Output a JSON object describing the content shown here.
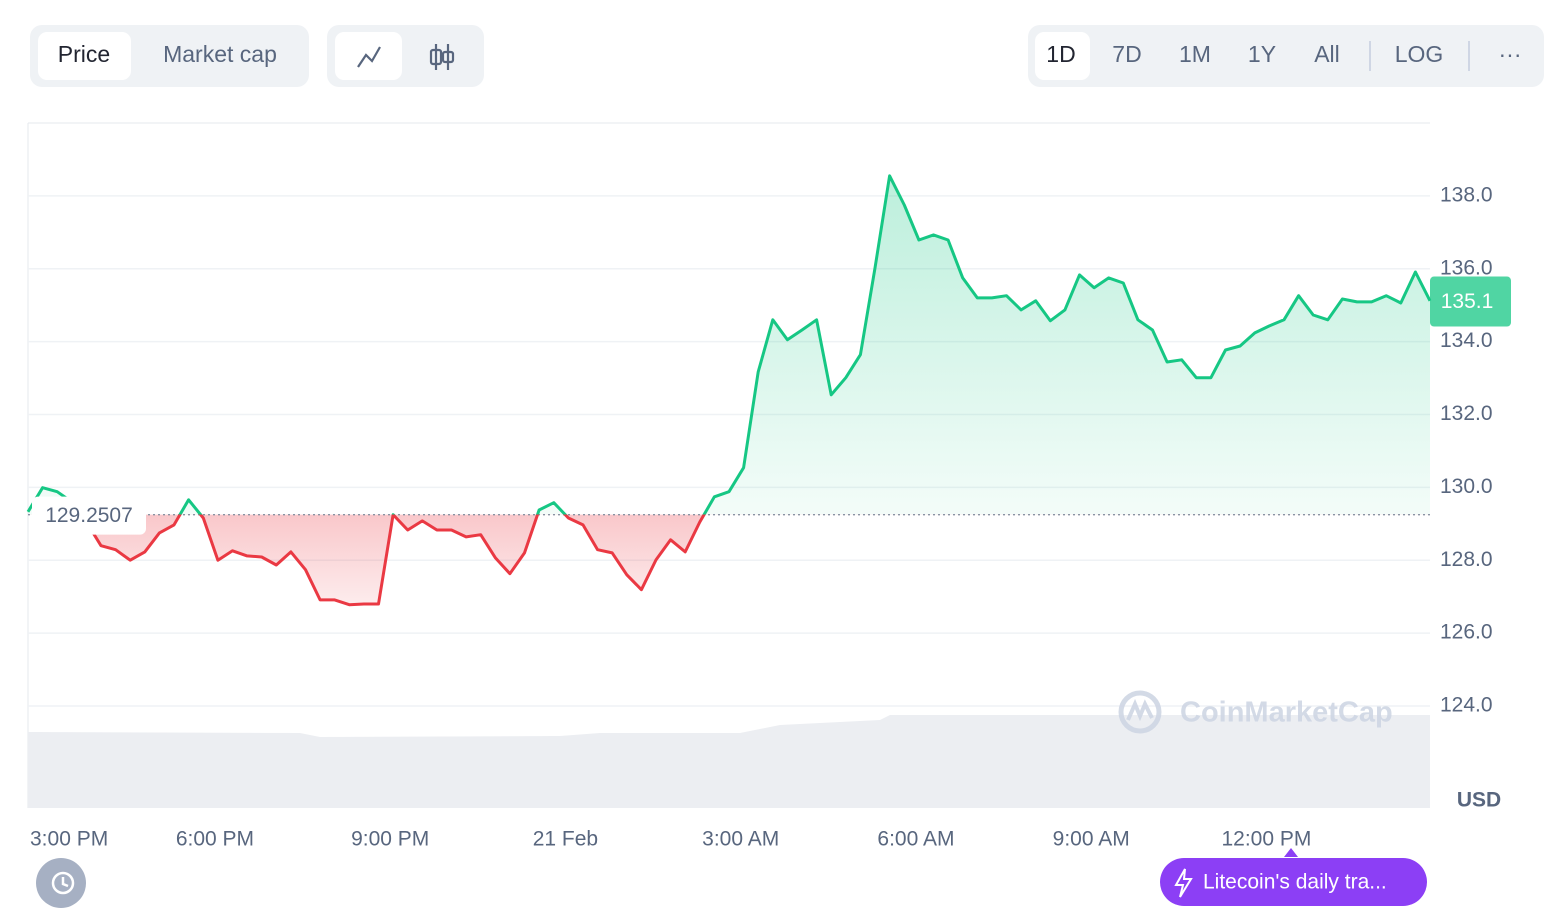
{
  "ui": {
    "tabs": [
      "Price",
      "Market cap"
    ],
    "ranges": [
      "1D",
      "7D",
      "1M",
      "1Y",
      "All"
    ],
    "log": "LOG",
    "more": "···",
    "watermark": "CoinMarketCap",
    "news": "Litecoin's daily tra..."
  },
  "chart_data": {
    "type": "line",
    "y_unit": "USD",
    "x": [
      14.8,
      15.05,
      15.3,
      15.55,
      15.8,
      16.05,
      16.3,
      16.55,
      16.8,
      17.05,
      17.3,
      17.55,
      17.8,
      18.05,
      18.3,
      18.55,
      18.8,
      19.05,
      19.3,
      19.55,
      19.8,
      20.05,
      20.3,
      20.55,
      20.8,
      21.05,
      21.3,
      21.55,
      21.8,
      22.05,
      22.3,
      22.55,
      22.8,
      23.05,
      23.3,
      23.55,
      23.8,
      24.05,
      24.3,
      24.55,
      24.8,
      25.05,
      25.3,
      25.55,
      25.8,
      26.05,
      26.3,
      26.55,
      26.8,
      27.05,
      27.3,
      27.55,
      27.8,
      28.05,
      28.3,
      28.55,
      28.8,
      29.05,
      29.3,
      29.55,
      29.8,
      30.05,
      30.3,
      30.55,
      30.8,
      31.05,
      31.3,
      31.55,
      31.8,
      32.05,
      32.3,
      32.55,
      32.8,
      33.05,
      33.3,
      33.55,
      33.8,
      34.05,
      34.3,
      34.55,
      34.8,
      35.05,
      35.3,
      35.55,
      35.8,
      36.05,
      36.3,
      36.55,
      36.8,
      37.05,
      37.3,
      37.55,
      37.8,
      38.05,
      38.3,
      38.55,
      38.8
    ],
    "values": [
      129.33,
      129.99,
      129.88,
      129.6,
      129.05,
      128.4,
      128.29,
      128.0,
      128.23,
      128.75,
      128.97,
      129.66,
      129.16,
      128.0,
      128.26,
      128.12,
      128.09,
      127.87,
      128.23,
      127.74,
      126.91,
      126.91,
      126.78,
      126.8,
      126.8,
      129.25,
      128.83,
      129.08,
      128.83,
      128.83,
      128.64,
      128.7,
      128.07,
      127.63,
      128.2,
      129.38,
      129.58,
      129.16,
      128.97,
      128.29,
      128.2,
      127.6,
      127.19,
      128.01,
      128.56,
      128.23,
      129.05,
      129.74,
      129.88,
      130.54,
      133.17,
      134.6,
      134.05,
      134.32,
      134.6,
      132.54,
      133.01,
      133.64,
      136.02,
      138.55,
      137.75,
      136.79,
      136.93,
      136.79,
      135.75,
      135.2,
      135.2,
      135.26,
      134.87,
      135.12,
      134.57,
      134.87,
      135.83,
      135.48,
      135.75,
      135.61,
      134.6,
      134.32,
      133.44,
      133.5,
      133.01,
      133.01,
      133.77,
      133.88,
      134.24,
      134.43,
      134.6,
      135.26,
      134.73,
      134.6,
      135.17,
      135.09,
      135.09,
      135.26,
      135.06,
      135.91,
      135.12
    ],
    "baseline": 129.2507,
    "last_price": 135.1,
    "color_up": "#16c784",
    "color_down": "#ea3943",
    "xlim": [
      14.8,
      38.8
    ],
    "xticks": [
      {
        "value": 15,
        "label": "3:00 PM"
      },
      {
        "value": 18,
        "label": "6:00 PM"
      },
      {
        "value": 21,
        "label": "9:00 PM"
      },
      {
        "value": 24,
        "label": "21 Feb"
      },
      {
        "value": 27,
        "label": "3:00 AM"
      },
      {
        "value": 30,
        "label": "6:00 AM"
      },
      {
        "value": 33,
        "label": "9:00 AM"
      },
      {
        "value": 36,
        "label": "12:00 PM"
      }
    ],
    "ylim": [
      121.2,
      140
    ],
    "yticks": [
      {
        "value": 124,
        "label": "124.0"
      },
      {
        "value": 126,
        "label": "126.0"
      },
      {
        "value": 128,
        "label": "128.0"
      },
      {
        "value": 130,
        "label": "130.0"
      },
      {
        "value": 132,
        "label": "132.0"
      },
      {
        "value": 134,
        "label": "134.0"
      },
      {
        "value": 136,
        "label": "136.0"
      },
      {
        "value": 138,
        "label": "138.0"
      }
    ],
    "grid": true
  }
}
